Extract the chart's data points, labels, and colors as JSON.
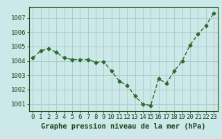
{
  "x": [
    0,
    1,
    2,
    3,
    4,
    5,
    6,
    7,
    8,
    9,
    10,
    11,
    12,
    13,
    14,
    15,
    16,
    17,
    18,
    19,
    20,
    21,
    22,
    23
  ],
  "y": [
    1004.2,
    1004.7,
    1004.85,
    1004.6,
    1004.2,
    1004.1,
    1004.1,
    1004.1,
    1003.9,
    1003.95,
    1003.3,
    1002.6,
    1002.3,
    1001.55,
    1001.0,
    1000.9,
    1002.75,
    1002.45,
    1003.3,
    1004.0,
    1005.1,
    1005.85,
    1006.45,
    1007.3
  ],
  "line_color": "#2d6a2d",
  "marker": "D",
  "marker_size": 2.5,
  "line_width": 1.0,
  "background_color": "#cce8e8",
  "grid_color": "#aac8c8",
  "ylabel_ticks": [
    1001,
    1002,
    1003,
    1004,
    1005,
    1006,
    1007
  ],
  "xlim": [
    -0.5,
    23.5
  ],
  "ylim": [
    1000.5,
    1007.75
  ],
  "xlabel": "Graphe pression niveau de la mer (hPa)",
  "xlabel_fontsize": 7.5,
  "tick_fontsize": 6.5,
  "axis_label_color": "#1a4a1a",
  "bottom_bar_color": "#cce8e8"
}
